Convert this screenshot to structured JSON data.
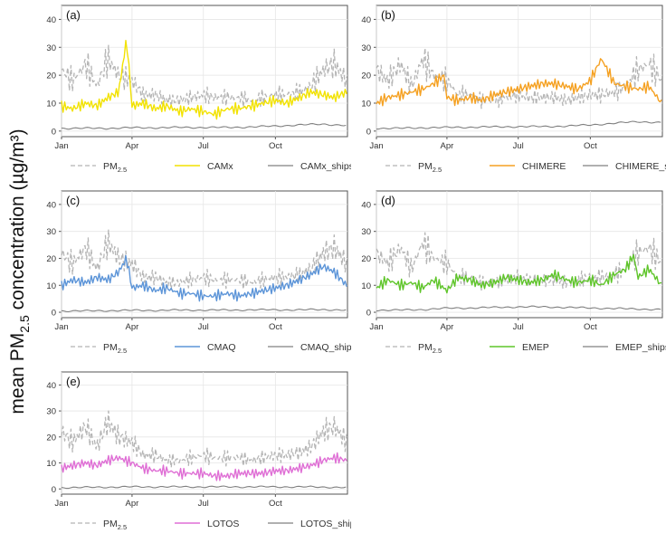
{
  "figure": {
    "ylabel_main": "mean PM",
    "ylabel_sub": "2.5",
    "ylabel_rest": " concentration (µg/m³)"
  },
  "chart_data": [
    {
      "type": "line",
      "panel_label": "(a)",
      "model": "CAMx",
      "ylim": [
        -2,
        45
      ],
      "yticks": [
        0,
        10,
        20,
        30,
        40
      ],
      "xticks": [
        "Jan",
        "Apr",
        "Jul",
        "Oct"
      ],
      "grid": true,
      "legend": {
        "obs_main": "PM",
        "obs_sub": "2.5",
        "model": "CAMx",
        "ships": "CAMx_ships"
      },
      "colors": {
        "obs": "#b5b5b5",
        "model": "#f2e200",
        "ships": "#808080"
      },
      "series": [
        {
          "name": "PM2.5",
          "x": [
            "2015-01-01",
            "2015-01-15",
            "2015-02-01",
            "2015-02-15",
            "2015-03-01",
            "2015-03-15",
            "2015-04-01",
            "2015-04-15",
            "2015-05-01",
            "2015-05-15",
            "2015-06-01",
            "2015-06-15",
            "2015-07-01",
            "2015-07-15",
            "2015-08-01",
            "2015-08-15",
            "2015-09-01",
            "2015-09-15",
            "2015-10-01",
            "2015-10-15",
            "2015-11-01",
            "2015-11-15",
            "2015-12-01",
            "2015-12-15",
            "2015-12-31"
          ],
          "values": [
            22,
            18,
            24,
            16,
            26,
            20,
            18,
            13,
            13,
            11,
            11,
            12,
            13,
            12,
            12,
            12,
            11,
            12,
            13,
            13,
            14,
            16,
            22,
            24,
            18
          ]
        },
        {
          "name": "CAMx",
          "x": [
            "2015-01-01",
            "2015-01-15",
            "2015-02-01",
            "2015-02-15",
            "2015-03-01",
            "2015-03-15",
            "2015-03-25",
            "2015-04-01",
            "2015-04-15",
            "2015-05-01",
            "2015-05-15",
            "2015-06-01",
            "2015-06-15",
            "2015-07-01",
            "2015-07-15",
            "2015-08-01",
            "2015-08-15",
            "2015-09-01",
            "2015-09-15",
            "2015-10-01",
            "2015-10-15",
            "2015-11-01",
            "2015-11-15",
            "2015-12-01",
            "2015-12-15",
            "2015-12-31"
          ],
          "values": [
            9,
            8,
            10,
            9,
            12,
            14,
            33,
            9,
            10,
            8,
            9,
            7,
            8,
            7,
            6,
            8,
            8,
            9,
            10,
            11,
            10,
            12,
            14,
            13,
            12,
            14
          ]
        },
        {
          "name": "CAMx_ships",
          "x": [
            "2015-01-01",
            "2015-02-01",
            "2015-03-01",
            "2015-04-01",
            "2015-05-01",
            "2015-06-01",
            "2015-07-01",
            "2015-08-01",
            "2015-09-01",
            "2015-10-01",
            "2015-11-01",
            "2015-12-01",
            "2015-12-31"
          ],
          "values": [
            1,
            1,
            1,
            1.2,
            1.2,
            1.3,
            1.3,
            1.3,
            1.5,
            1.8,
            2.2,
            2.5,
            2
          ]
        }
      ]
    },
    {
      "type": "line",
      "panel_label": "(b)",
      "model": "CHIMERE",
      "ylim": [
        -2,
        45
      ],
      "yticks": [
        0,
        10,
        20,
        30,
        40
      ],
      "xticks": [
        "Jan",
        "Apr",
        "Jul",
        "Oct"
      ],
      "grid": true,
      "legend": {
        "obs_main": "PM",
        "obs_sub": "2.5",
        "model": "CHIMERE",
        "ships": "CHIMERE_ships"
      },
      "colors": {
        "obs": "#b5b5b5",
        "model": "#f5a122",
        "ships": "#808080"
      },
      "series": [
        {
          "name": "PM2.5",
          "x": [
            "2015-01-01",
            "2015-01-15",
            "2015-02-01",
            "2015-02-15",
            "2015-03-01",
            "2015-03-15",
            "2015-04-01",
            "2015-04-15",
            "2015-05-01",
            "2015-05-15",
            "2015-06-01",
            "2015-06-15",
            "2015-07-01",
            "2015-07-15",
            "2015-08-01",
            "2015-08-15",
            "2015-09-01",
            "2015-09-15",
            "2015-10-01",
            "2015-10-15",
            "2015-11-01",
            "2015-11-15",
            "2015-12-01",
            "2015-12-15",
            "2015-12-31"
          ],
          "values": [
            22,
            18,
            24,
            16,
            26,
            20,
            18,
            13,
            13,
            11,
            11,
            12,
            13,
            12,
            12,
            12,
            11,
            12,
            13,
            13,
            14,
            16,
            22,
            24,
            18
          ]
        },
        {
          "name": "CHIMERE",
          "x": [
            "2015-01-01",
            "2015-01-15",
            "2015-02-01",
            "2015-02-15",
            "2015-03-01",
            "2015-03-15",
            "2015-03-28",
            "2015-04-01",
            "2015-04-15",
            "2015-05-01",
            "2015-05-15",
            "2015-06-01",
            "2015-06-15",
            "2015-07-01",
            "2015-07-15",
            "2015-08-01",
            "2015-08-15",
            "2015-09-01",
            "2015-09-15",
            "2015-10-01",
            "2015-10-15",
            "2015-11-01",
            "2015-11-15",
            "2015-12-01",
            "2015-12-15",
            "2015-12-31"
          ],
          "values": [
            10,
            12,
            13,
            14,
            15,
            17,
            20,
            12,
            11,
            12,
            11,
            13,
            14,
            15,
            16,
            17,
            17,
            16,
            15,
            18,
            26,
            17,
            16,
            15,
            16,
            10
          ]
        },
        {
          "name": "CHIMERE_ships",
          "x": [
            "2015-01-01",
            "2015-02-01",
            "2015-03-01",
            "2015-04-01",
            "2015-05-01",
            "2015-06-01",
            "2015-07-01",
            "2015-08-01",
            "2015-09-01",
            "2015-10-01",
            "2015-11-01",
            "2015-12-01",
            "2015-12-31"
          ],
          "values": [
            1,
            1,
            1.2,
            1.3,
            1.4,
            1.5,
            1.6,
            1.6,
            1.8,
            2.2,
            2.8,
            3.4,
            3
          ]
        }
      ]
    },
    {
      "type": "line",
      "panel_label": "(c)",
      "model": "CMAQ",
      "ylim": [
        -2,
        45
      ],
      "yticks": [
        0,
        10,
        20,
        30,
        40
      ],
      "xticks": [
        "Jan",
        "Apr",
        "Jul",
        "Oct"
      ],
      "grid": true,
      "legend": {
        "obs_main": "PM",
        "obs_sub": "2.5",
        "model": "CMAQ",
        "ships": "CMAQ_ships"
      },
      "colors": {
        "obs": "#b5b5b5",
        "model": "#5d95d8",
        "ships": "#808080"
      },
      "series": [
        {
          "name": "PM2.5",
          "x": [
            "2015-01-01",
            "2015-01-15",
            "2015-02-01",
            "2015-02-15",
            "2015-03-01",
            "2015-03-15",
            "2015-04-01",
            "2015-04-15",
            "2015-05-01",
            "2015-05-15",
            "2015-06-01",
            "2015-06-15",
            "2015-07-01",
            "2015-07-15",
            "2015-08-01",
            "2015-08-15",
            "2015-09-01",
            "2015-09-15",
            "2015-10-01",
            "2015-10-15",
            "2015-11-01",
            "2015-11-15",
            "2015-12-01",
            "2015-12-15",
            "2015-12-31"
          ],
          "values": [
            22,
            18,
            24,
            16,
            26,
            20,
            18,
            13,
            13,
            11,
            11,
            12,
            13,
            12,
            12,
            12,
            11,
            12,
            13,
            13,
            14,
            16,
            22,
            24,
            18
          ]
        },
        {
          "name": "CMAQ",
          "x": [
            "2015-01-01",
            "2015-01-15",
            "2015-02-01",
            "2015-02-15",
            "2015-03-01",
            "2015-03-15",
            "2015-03-25",
            "2015-04-01",
            "2015-04-15",
            "2015-05-01",
            "2015-05-15",
            "2015-06-01",
            "2015-06-15",
            "2015-07-01",
            "2015-07-15",
            "2015-08-01",
            "2015-08-15",
            "2015-09-01",
            "2015-09-15",
            "2015-10-01",
            "2015-10-15",
            "2015-11-01",
            "2015-11-15",
            "2015-12-01",
            "2015-12-15",
            "2015-12-31"
          ],
          "values": [
            10,
            12,
            11,
            13,
            12,
            15,
            20,
            9,
            10,
            8,
            9,
            7,
            7,
            6,
            6,
            7,
            6,
            7,
            8,
            9,
            10,
            12,
            14,
            17,
            15,
            10
          ]
        },
        {
          "name": "CMAQ_ships",
          "x": [
            "2015-01-01",
            "2015-02-01",
            "2015-03-01",
            "2015-04-01",
            "2015-05-01",
            "2015-06-01",
            "2015-07-01",
            "2015-08-01",
            "2015-09-01",
            "2015-10-01",
            "2015-11-01",
            "2015-12-01",
            "2015-12-31"
          ],
          "values": [
            0.5,
            0.5,
            0.6,
            0.7,
            0.7,
            0.8,
            0.8,
            0.8,
            0.9,
            0.9,
            0.9,
            1,
            0.8
          ]
        }
      ]
    },
    {
      "type": "line",
      "panel_label": "(d)",
      "model": "EMEP",
      "ylim": [
        -2,
        45
      ],
      "yticks": [
        0,
        10,
        20,
        30,
        40
      ],
      "xticks": [
        "Jan",
        "Apr",
        "Jul",
        "Oct"
      ],
      "grid": true,
      "legend": {
        "obs_main": "PM",
        "obs_sub": "2.5",
        "model": "EMEP",
        "ships": "EMEP_ships"
      },
      "colors": {
        "obs": "#b5b5b5",
        "model": "#5fc52a",
        "ships": "#808080"
      },
      "series": [
        {
          "name": "PM2.5",
          "x": [
            "2015-01-01",
            "2015-01-15",
            "2015-02-01",
            "2015-02-15",
            "2015-03-01",
            "2015-03-15",
            "2015-04-01",
            "2015-04-15",
            "2015-05-01",
            "2015-05-15",
            "2015-06-01",
            "2015-06-15",
            "2015-07-01",
            "2015-07-15",
            "2015-08-01",
            "2015-08-15",
            "2015-09-01",
            "2015-09-15",
            "2015-10-01",
            "2015-10-15",
            "2015-11-01",
            "2015-11-15",
            "2015-12-01",
            "2015-12-15",
            "2015-12-31"
          ],
          "values": [
            22,
            18,
            24,
            16,
            26,
            20,
            18,
            13,
            13,
            11,
            11,
            12,
            13,
            12,
            12,
            12,
            11,
            12,
            13,
            13,
            14,
            16,
            22,
            24,
            18
          ]
        },
        {
          "name": "EMEP",
          "x": [
            "2015-01-01",
            "2015-01-15",
            "2015-02-01",
            "2015-02-15",
            "2015-03-01",
            "2015-03-15",
            "2015-04-01",
            "2015-04-15",
            "2015-05-01",
            "2015-05-15",
            "2015-06-01",
            "2015-06-15",
            "2015-07-01",
            "2015-07-15",
            "2015-08-01",
            "2015-08-15",
            "2015-09-01",
            "2015-09-15",
            "2015-10-01",
            "2015-10-15",
            "2015-11-01",
            "2015-11-15",
            "2015-11-25",
            "2015-12-01",
            "2015-12-15",
            "2015-12-31"
          ],
          "values": [
            9,
            12,
            10,
            11,
            9,
            12,
            8,
            13,
            12,
            10,
            11,
            13,
            12,
            11,
            12,
            14,
            12,
            11,
            12,
            10,
            14,
            16,
            21,
            13,
            16,
            10
          ]
        },
        {
          "name": "EMEP_ships",
          "x": [
            "2015-01-01",
            "2015-02-01",
            "2015-03-01",
            "2015-04-01",
            "2015-05-01",
            "2015-06-01",
            "2015-07-01",
            "2015-08-01",
            "2015-09-01",
            "2015-10-01",
            "2015-11-01",
            "2015-12-01",
            "2015-12-31"
          ],
          "values": [
            0.8,
            0.8,
            1,
            1.5,
            1.6,
            1.8,
            2,
            2,
            1.8,
            1.6,
            1.4,
            1.2,
            1
          ]
        }
      ]
    },
    {
      "type": "line",
      "panel_label": "(e)",
      "model": "LOTOS",
      "ylim": [
        -2,
        45
      ],
      "yticks": [
        0,
        10,
        20,
        30,
        40
      ],
      "xticks": [
        "Jan",
        "Apr",
        "Jul",
        "Oct"
      ],
      "grid": true,
      "legend": {
        "obs_main": "PM",
        "obs_sub": "2.5",
        "model": "LOTOS",
        "ships": "LOTOS_ships"
      },
      "colors": {
        "obs": "#b5b5b5",
        "model": "#df6fd5",
        "ships": "#808080"
      },
      "series": [
        {
          "name": "PM2.5",
          "x": [
            "2015-01-01",
            "2015-01-15",
            "2015-02-01",
            "2015-02-15",
            "2015-03-01",
            "2015-03-15",
            "2015-04-01",
            "2015-04-15",
            "2015-05-01",
            "2015-05-15",
            "2015-06-01",
            "2015-06-15",
            "2015-07-01",
            "2015-07-15",
            "2015-08-01",
            "2015-08-15",
            "2015-09-01",
            "2015-09-15",
            "2015-10-01",
            "2015-10-15",
            "2015-11-01",
            "2015-11-15",
            "2015-12-01",
            "2015-12-15",
            "2015-12-31"
          ],
          "values": [
            22,
            18,
            24,
            16,
            26,
            20,
            18,
            13,
            13,
            11,
            11,
            12,
            13,
            12,
            12,
            12,
            11,
            12,
            13,
            13,
            14,
            16,
            22,
            24,
            18
          ]
        },
        {
          "name": "LOTOS",
          "x": [
            "2015-01-01",
            "2015-01-15",
            "2015-02-01",
            "2015-02-15",
            "2015-03-01",
            "2015-03-15",
            "2015-04-01",
            "2015-04-15",
            "2015-05-01",
            "2015-05-15",
            "2015-06-01",
            "2015-06-15",
            "2015-07-01",
            "2015-07-15",
            "2015-08-01",
            "2015-08-15",
            "2015-09-01",
            "2015-09-15",
            "2015-10-01",
            "2015-10-15",
            "2015-11-01",
            "2015-11-15",
            "2015-12-01",
            "2015-12-15",
            "2015-12-31"
          ],
          "values": [
            8,
            9,
            10,
            9,
            11,
            12,
            10,
            8,
            7,
            7,
            6,
            6,
            6,
            5,
            5,
            6,
            6,
            6,
            7,
            7,
            8,
            9,
            11,
            12,
            11
          ]
        },
        {
          "name": "LOTOS_ships",
          "x": [
            "2015-01-01",
            "2015-02-01",
            "2015-03-01",
            "2015-04-01",
            "2015-05-01",
            "2015-06-01",
            "2015-07-01",
            "2015-08-01",
            "2015-09-01",
            "2015-10-01",
            "2015-11-01",
            "2015-12-01",
            "2015-12-31"
          ],
          "values": [
            0.5,
            0.6,
            0.7,
            0.8,
            0.8,
            0.8,
            0.8,
            0.8,
            0.8,
            0.8,
            0.8,
            0.7,
            0.6
          ]
        }
      ]
    }
  ]
}
